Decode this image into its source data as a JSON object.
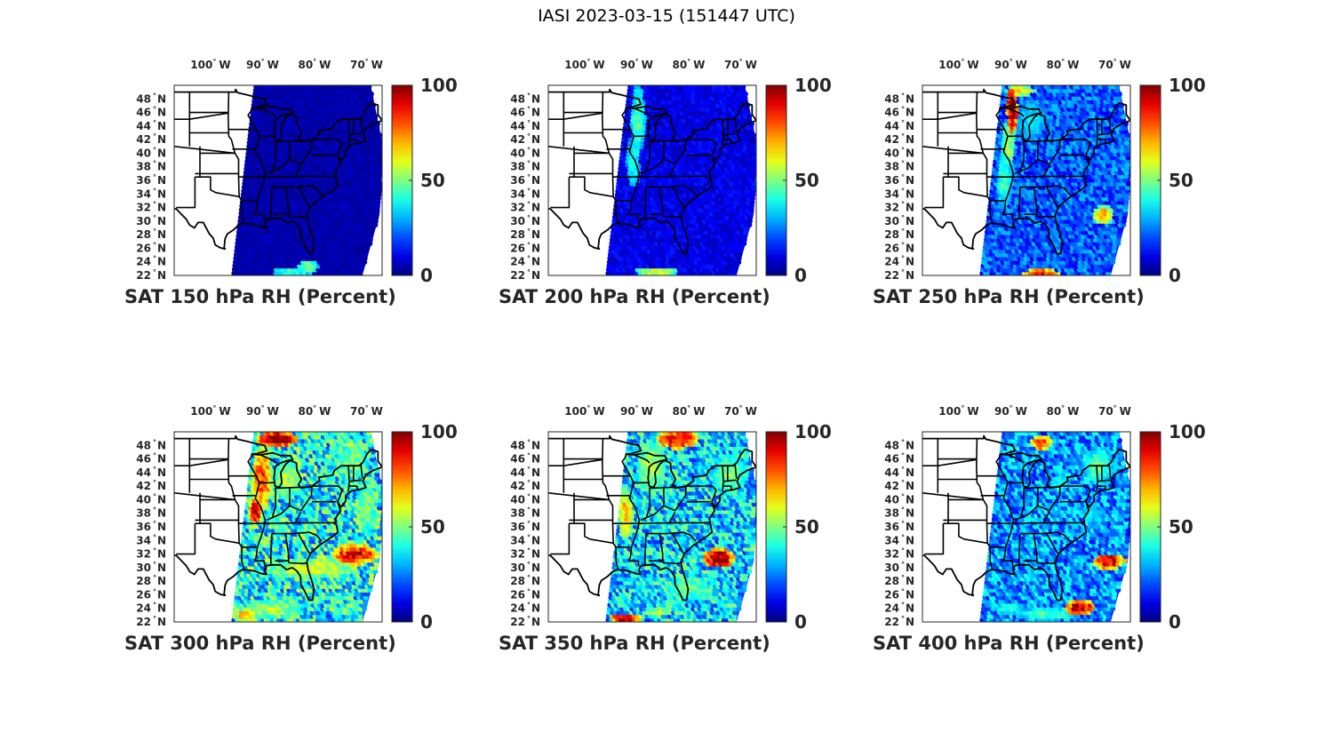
{
  "title": "IASI 2023-03-15 (151447 UTC)",
  "lon_ticks": [
    {
      "value": -100,
      "label": "100",
      "hemi": "W"
    },
    {
      "value": -90,
      "label": "90",
      "hemi": "W"
    },
    {
      "value": -80,
      "label": "80",
      "hemi": "W"
    },
    {
      "value": -70,
      "label": "70",
      "hemi": "W"
    }
  ],
  "lat_ticks": [
    {
      "value": 48,
      "label": "48",
      "hemi": "N"
    },
    {
      "value": 46,
      "label": "46",
      "hemi": "N"
    },
    {
      "value": 44,
      "label": "44",
      "hemi": "N"
    },
    {
      "value": 42,
      "label": "42",
      "hemi": "N"
    },
    {
      "value": 40,
      "label": "40",
      "hemi": "N"
    },
    {
      "value": 38,
      "label": "38",
      "hemi": "N"
    },
    {
      "value": 36,
      "label": "36",
      "hemi": "N"
    },
    {
      "value": 34,
      "label": "34",
      "hemi": "N"
    },
    {
      "value": 32,
      "label": "32",
      "hemi": "N"
    },
    {
      "value": 30,
      "label": "30",
      "hemi": "N"
    },
    {
      "value": 28,
      "label": "28",
      "hemi": "N"
    },
    {
      "value": 26,
      "label": "26",
      "hemi": "N"
    },
    {
      "value": 24,
      "label": "24",
      "hemi": "N"
    },
    {
      "value": 22,
      "label": "22",
      "hemi": "N"
    }
  ],
  "extent": {
    "lon": [
      -107,
      -67
    ],
    "lat": [
      22,
      50
    ]
  },
  "colorbar": {
    "min": 0,
    "max": 100,
    "ticks": [
      "0",
      "50",
      "100"
    ],
    "colormap": "jet"
  },
  "panels": [
    {
      "caption": "SAT 150 hPa RH (Percent)",
      "level": 150,
      "moisture": 0.05
    },
    {
      "caption": "SAT 200 hPa RH (Percent)",
      "level": 200,
      "moisture": 0.12
    },
    {
      "caption": "SAT 250 hPa RH (Percent)",
      "level": 250,
      "moisture": 0.25
    },
    {
      "caption": "SAT 300 hPa RH (Percent)",
      "level": 300,
      "moisture": 0.45
    },
    {
      "caption": "SAT 350 hPa RH (Percent)",
      "level": 350,
      "moisture": 0.4
    },
    {
      "caption": "SAT 400 hPa RH (Percent)",
      "level": 400,
      "moisture": 0.32
    }
  ]
}
